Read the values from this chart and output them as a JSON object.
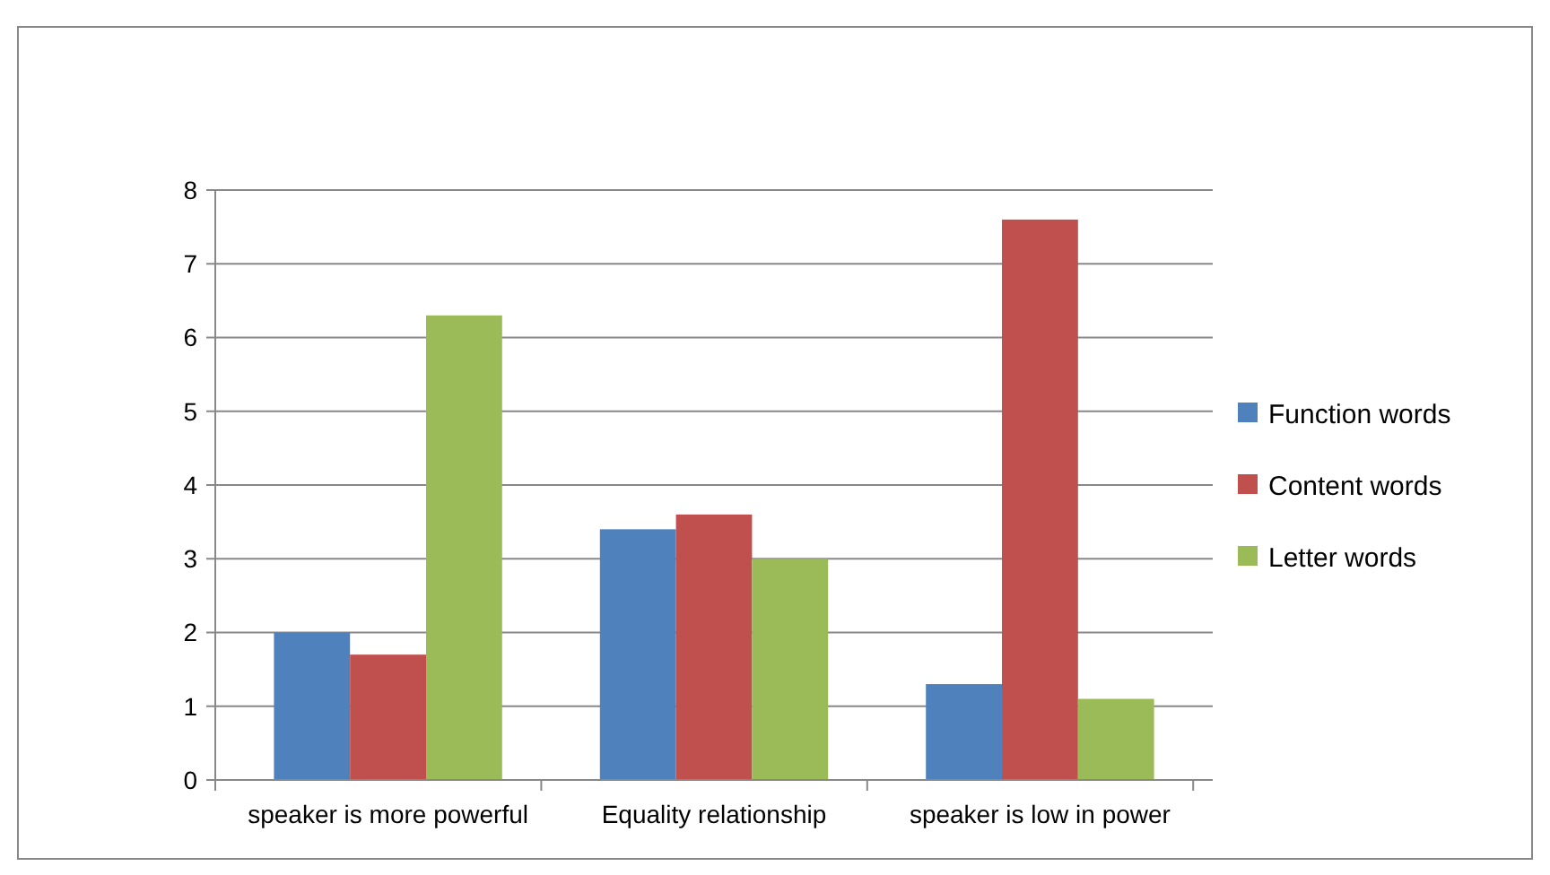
{
  "chart_data": {
    "type": "bar",
    "categories": [
      "speaker is more powerful",
      "Equality relationship",
      "speaker is low in power"
    ],
    "series": [
      {
        "name": "Function words",
        "color": "#4f81bd",
        "values": [
          2.0,
          3.4,
          1.3
        ]
      },
      {
        "name": "Content words",
        "color": "#c0504d",
        "values": [
          1.7,
          3.6,
          7.6
        ]
      },
      {
        "name": "Letter words",
        "color": "#9bbb59",
        "values": [
          6.3,
          3.0,
          1.1
        ]
      }
    ],
    "ylim": [
      0,
      8
    ],
    "yticks": [
      0,
      1,
      2,
      3,
      4,
      5,
      6,
      7,
      8
    ],
    "grid": "y",
    "legend": "right"
  }
}
